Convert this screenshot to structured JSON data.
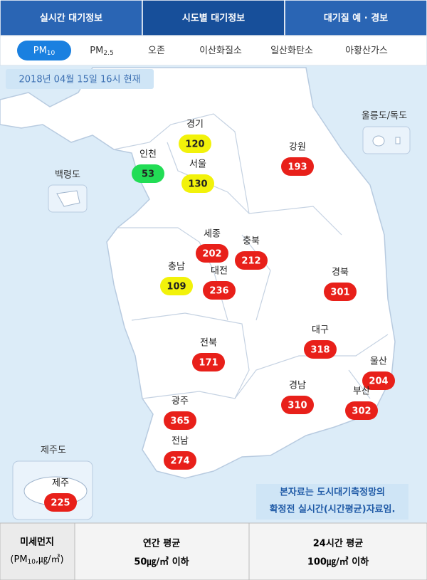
{
  "tabs": [
    "실시간 대기정보",
    "시도별 대기정보",
    "대기질 예 · 경보"
  ],
  "active_tab": 1,
  "pollutant_tabs": [
    {
      "label": "PM",
      "sub": "10"
    },
    {
      "label": "PM",
      "sub": "2.5"
    },
    {
      "label": "오존"
    },
    {
      "label": "이산화질소"
    },
    {
      "label": "일산화탄소"
    },
    {
      "label": "아황산가스"
    }
  ],
  "active_pollutant": 0,
  "timestamp": "2018년 04월 15일 16시 현재",
  "regions": [
    {
      "name": "경기",
      "value": 120,
      "color": "#f2f20a"
    },
    {
      "name": "인천",
      "value": 53,
      "color": "#22dd55"
    },
    {
      "name": "서울",
      "value": 130,
      "color": "#f2f20a"
    },
    {
      "name": "강원",
      "value": 193,
      "color": "#e8201a"
    },
    {
      "name": "세종",
      "value": 202,
      "color": "#e8201a"
    },
    {
      "name": "충북",
      "value": 212,
      "color": "#e8201a"
    },
    {
      "name": "충남",
      "value": 109,
      "color": "#f2f20a"
    },
    {
      "name": "대전",
      "value": 236,
      "color": "#e8201a"
    },
    {
      "name": "경북",
      "value": 301,
      "color": "#e8201a"
    },
    {
      "name": "대구",
      "value": 318,
      "color": "#e8201a"
    },
    {
      "name": "전북",
      "value": 171,
      "color": "#e8201a"
    },
    {
      "name": "울산",
      "value": 204,
      "color": "#e8201a"
    },
    {
      "name": "경남",
      "value": 310,
      "color": "#e8201a"
    },
    {
      "name": "부산",
      "value": 302,
      "color": "#e8201a"
    },
    {
      "name": "광주",
      "value": 365,
      "color": "#e8201a"
    },
    {
      "name": "전남",
      "value": 274,
      "color": "#e8201a"
    },
    {
      "name": "제주",
      "value": 225,
      "color": "#e8201a"
    }
  ],
  "islands": [
    "백령도",
    "울릉도/독도",
    "제주도"
  ],
  "note": [
    "본자료는 도시대기측정망의",
    "확정전 실시간(시간평균)자료임."
  ],
  "footer": {
    "unit_title": "미세먼지",
    "unit_parts": [
      "(PM",
      "10",
      ",㎍/㎥)"
    ],
    "columns": [
      {
        "header": "연간 평균",
        "value": "50㎍/㎥ 이하"
      },
      {
        "header": "24시간 평균",
        "value": "100㎍/㎥ 이하"
      }
    ]
  }
}
